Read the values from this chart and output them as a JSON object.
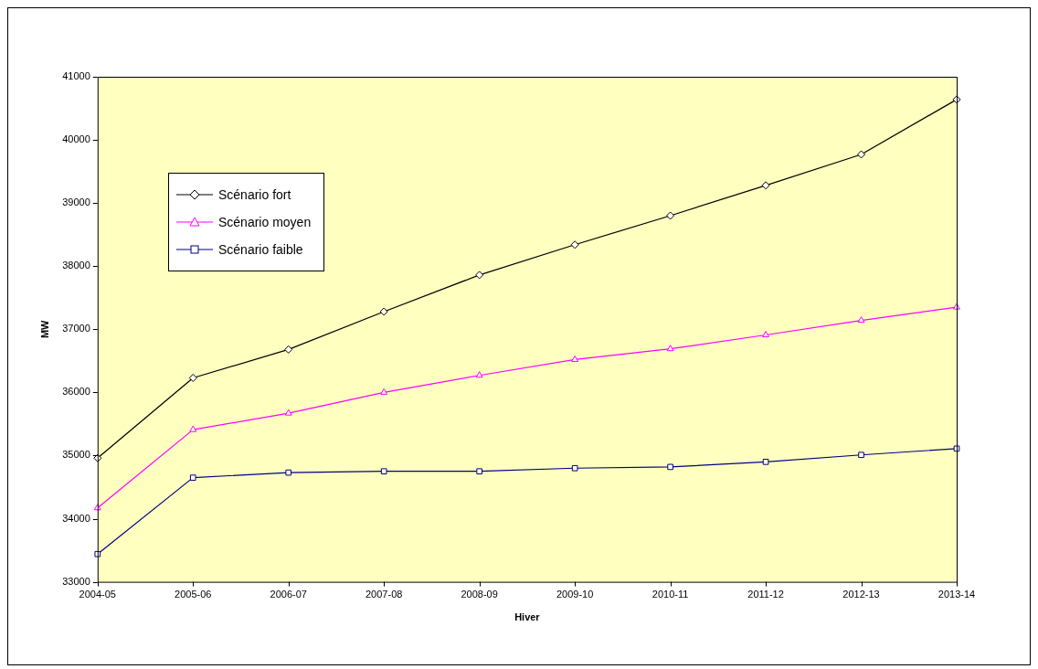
{
  "chart_data": {
    "type": "line",
    "xlabel": "Hiver",
    "ylabel": "MW",
    "categories": [
      "2004-05",
      "2005-06",
      "2006-07",
      "2007-08",
      "2008-09",
      "2009-10",
      "2010-11",
      "2011-12",
      "2012-13",
      "2013-14"
    ],
    "series": [
      {
        "name": "Scénario fort",
        "color": "#000000",
        "marker": "diamond",
        "values": [
          34960,
          36230,
          36680,
          37280,
          37860,
          38340,
          38800,
          39280,
          39770,
          40640
        ]
      },
      {
        "name": "Scénario moyen",
        "color": "#ff00ff",
        "marker": "triangle",
        "values": [
          34170,
          35410,
          35670,
          36000,
          36270,
          36520,
          36690,
          36910,
          37140,
          37350
        ]
      },
      {
        "name": "Scénario faible",
        "color": "#000080",
        "marker": "square",
        "values": [
          33440,
          34650,
          34730,
          34750,
          34750,
          34800,
          34820,
          34900,
          35010,
          35110
        ]
      }
    ],
    "ylim": [
      33000,
      41000
    ],
    "yticks": [
      33000,
      34000,
      35000,
      36000,
      37000,
      38000,
      39000,
      40000,
      41000
    ],
    "grid": false,
    "legend": "top left",
    "line_style": "solid"
  }
}
